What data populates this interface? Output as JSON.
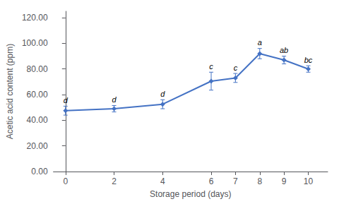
{
  "chart_data": {
    "type": "line",
    "x": [
      0,
      2,
      4,
      6,
      7,
      8,
      9,
      10
    ],
    "values": [
      47.5,
      49.0,
      52.5,
      70.5,
      73.0,
      92.0,
      87.0,
      80.0
    ],
    "yerr": [
      3.5,
      2.5,
      3.5,
      7.0,
      3.5,
      4.0,
      3.0,
      2.5
    ],
    "annotations": [
      "d",
      "d",
      "d",
      "c",
      "c",
      "a",
      "ab",
      "bc"
    ],
    "xlabel": "Storage period (days)",
    "ylabel": "Acetic acid content (ppm)",
    "xlim": [
      -0.5,
      10.8
    ],
    "ylim": [
      0,
      125
    ],
    "xticks": [
      0,
      2,
      4,
      6,
      7,
      8,
      9,
      10
    ],
    "yticks": [
      {
        "value": 0,
        "label": "0.00"
      },
      {
        "value": 20,
        "label": "20.00"
      },
      {
        "value": 40,
        "label": "40.00"
      },
      {
        "value": 60,
        "label": "60.00"
      },
      {
        "value": 80,
        "label": "80.00"
      },
      {
        "value": 100,
        "label": "100.00"
      },
      {
        "value": 120,
        "label": "120.00"
      }
    ],
    "color": "#4472C4",
    "marker": "diamond",
    "grid": false
  }
}
